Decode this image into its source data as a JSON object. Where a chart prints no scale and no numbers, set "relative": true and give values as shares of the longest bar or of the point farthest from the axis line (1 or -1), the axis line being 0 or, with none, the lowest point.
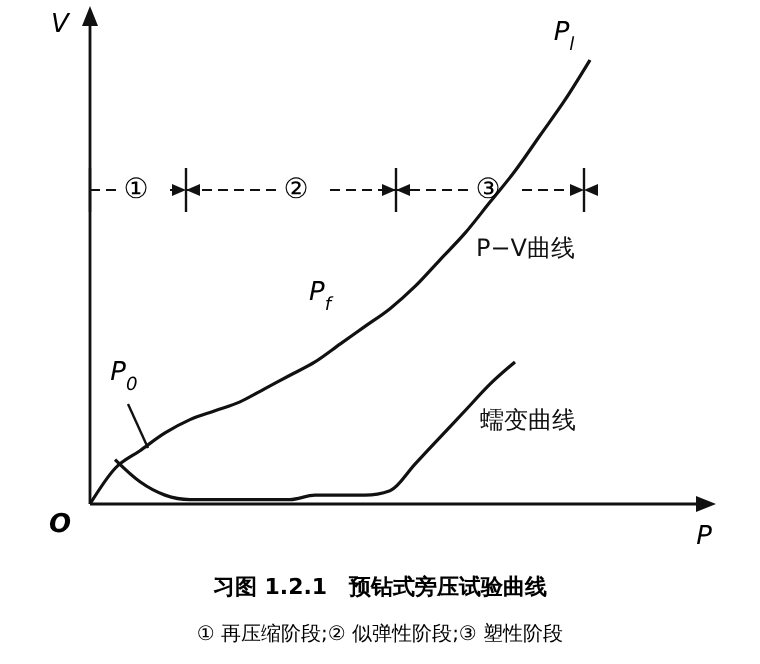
{
  "chart_data": {
    "type": "line",
    "title": "习图 1.2.1　预钻式旁压试验曲线",
    "subtitle": "① 再压缩阶段;② 似弹性阶段;③ 塑性阶段",
    "xlabel": "P",
    "ylabel": "V",
    "relative": true,
    "categories": [
      null,
      null,
      null,
      null,
      null,
      null,
      null,
      null,
      null,
      null,
      null,
      null,
      null,
      null,
      null,
      null,
      null,
      null,
      null,
      null,
      null
    ],
    "series": [
      {
        "name": "P−V曲线",
        "color": "#111111",
        "values": [
          0,
          0.08,
          0.12,
          0.16,
          0.19,
          0.21,
          0.23,
          0.26,
          0.29,
          0.32,
          0.36,
          0.4,
          0.44,
          0.49,
          0.55,
          0.61,
          0.68,
          0.75,
          0.83,
          0.91,
          1
        ]
      },
      {
        "name": "蠕变曲线",
        "color": "#111111",
        "values": [
          null,
          0.1,
          0.05,
          0.02,
          0.01,
          0.01,
          0.01,
          0.01,
          0.01,
          0.02,
          0.02,
          0.02,
          0.03,
          0.09,
          0.15,
          0.21,
          0.27,
          0.32,
          null,
          null,
          null
        ]
      }
    ],
    "annotations": [
      "O",
      "P$_{0}$",
      "P$_{f}$",
      "P$_{l}$",
      "①",
      "②",
      "③"
    ]
  }
}
